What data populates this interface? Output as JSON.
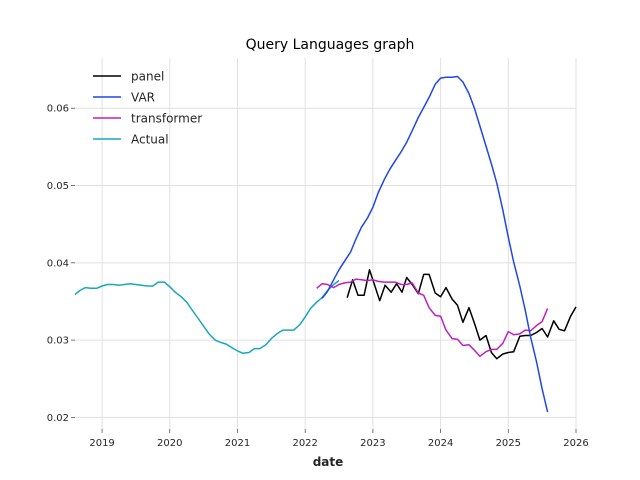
{
  "chart_data": {
    "type": "line",
    "title": "Query Languages graph",
    "xlabel": "date",
    "ylabel": "",
    "xlim": [
      2018.6,
      2026.0
    ],
    "ylim": [
      0.0185,
      0.0665
    ],
    "x_ticks": [
      2019,
      2020,
      2021,
      2022,
      2023,
      2024,
      2025,
      2026
    ],
    "x_tick_labels": [
      "2019",
      "2020",
      "2021",
      "2022",
      "2023",
      "2024",
      "2025",
      "2026"
    ],
    "y_ticks": [
      0.02,
      0.03,
      0.04,
      0.05,
      0.06
    ],
    "y_tick_labels": [
      "0.02",
      "0.03",
      "0.04",
      "0.05",
      "0.06"
    ],
    "grid": true,
    "legend_position": "top-left",
    "series": [
      {
        "name": "panel",
        "color": "#000000",
        "points": [
          [
            2022.62,
            0.0355
          ],
          [
            2022.7,
            0.0378
          ],
          [
            2022.78,
            0.0358
          ],
          [
            2022.87,
            0.0358
          ],
          [
            2022.95,
            0.0391
          ],
          [
            2023.03,
            0.037
          ],
          [
            2023.1,
            0.0351
          ],
          [
            2023.18,
            0.0371
          ],
          [
            2023.27,
            0.0362
          ],
          [
            2023.35,
            0.0373
          ],
          [
            2023.43,
            0.0362
          ],
          [
            2023.5,
            0.0381
          ],
          [
            2023.58,
            0.0372
          ],
          [
            2023.67,
            0.036
          ],
          [
            2023.75,
            0.0385
          ],
          [
            2023.83,
            0.0385
          ],
          [
            2023.92,
            0.0361
          ],
          [
            2024.0,
            0.0356
          ],
          [
            2024.08,
            0.0368
          ],
          [
            2024.17,
            0.0353
          ],
          [
            2024.25,
            0.0345
          ],
          [
            2024.33,
            0.0323
          ],
          [
            2024.42,
            0.0342
          ],
          [
            2024.5,
            0.0322
          ],
          [
            2024.58,
            0.03
          ],
          [
            2024.67,
            0.0306
          ],
          [
            2024.75,
            0.0284
          ],
          [
            2024.83,
            0.0276
          ],
          [
            2024.92,
            0.0282
          ],
          [
            2025.0,
            0.0284
          ],
          [
            2025.08,
            0.0285
          ],
          [
            2025.17,
            0.0305
          ],
          [
            2025.25,
            0.0306
          ],
          [
            2025.33,
            0.0306
          ],
          [
            2025.42,
            0.031
          ],
          [
            2025.5,
            0.0315
          ],
          [
            2025.58,
            0.0304
          ],
          [
            2025.67,
            0.0325
          ],
          [
            2025.75,
            0.0314
          ],
          [
            2025.83,
            0.0312
          ],
          [
            2025.92,
            0.0331
          ],
          [
            2026.0,
            0.0343
          ]
        ]
      },
      {
        "name": "VAR",
        "color": "#1f47e6",
        "points": [
          [
            2022.25,
            0.0354
          ],
          [
            2022.33,
            0.0363
          ],
          [
            2022.42,
            0.0378
          ],
          [
            2022.5,
            0.0391
          ],
          [
            2022.58,
            0.0402
          ],
          [
            2022.67,
            0.0414
          ],
          [
            2022.75,
            0.0431
          ],
          [
            2022.83,
            0.0446
          ],
          [
            2022.92,
            0.0458
          ],
          [
            2023.0,
            0.0472
          ],
          [
            2023.08,
            0.0491
          ],
          [
            2023.17,
            0.0508
          ],
          [
            2023.25,
            0.0521
          ],
          [
            2023.33,
            0.0532
          ],
          [
            2023.42,
            0.0544
          ],
          [
            2023.5,
            0.0556
          ],
          [
            2023.58,
            0.0571
          ],
          [
            2023.67,
            0.0588
          ],
          [
            2023.75,
            0.0601
          ],
          [
            2023.83,
            0.0614
          ],
          [
            2023.92,
            0.0631
          ],
          [
            2024.0,
            0.0639
          ],
          [
            2024.08,
            0.064
          ],
          [
            2024.17,
            0.064
          ],
          [
            2024.25,
            0.0641
          ],
          [
            2024.33,
            0.0634
          ],
          [
            2024.42,
            0.0619
          ],
          [
            2024.5,
            0.06
          ],
          [
            2024.58,
            0.0577
          ],
          [
            2024.67,
            0.0551
          ],
          [
            2024.75,
            0.0528
          ],
          [
            2024.83,
            0.0503
          ],
          [
            2024.92,
            0.0468
          ],
          [
            2025.0,
            0.0433
          ],
          [
            2025.08,
            0.0401
          ],
          [
            2025.17,
            0.037
          ],
          [
            2025.25,
            0.0339
          ],
          [
            2025.33,
            0.0304
          ],
          [
            2025.42,
            0.0271
          ],
          [
            2025.5,
            0.0237
          ],
          [
            2025.58,
            0.0207
          ]
        ]
      },
      {
        "name": "transformer",
        "color": "#c21fc2",
        "points": [
          [
            2022.17,
            0.0367
          ],
          [
            2022.25,
            0.0373
          ],
          [
            2022.33,
            0.0372
          ],
          [
            2022.42,
            0.0368
          ],
          [
            2022.5,
            0.0372
          ],
          [
            2022.58,
            0.0374
          ],
          [
            2022.67,
            0.0375
          ],
          [
            2022.75,
            0.0379
          ],
          [
            2022.83,
            0.0378
          ],
          [
            2022.92,
            0.0377
          ],
          [
            2023.0,
            0.0378
          ],
          [
            2023.08,
            0.0376
          ],
          [
            2023.17,
            0.0375
          ],
          [
            2023.25,
            0.0375
          ],
          [
            2023.33,
            0.0375
          ],
          [
            2023.42,
            0.0372
          ],
          [
            2023.5,
            0.0372
          ],
          [
            2023.58,
            0.0374
          ],
          [
            2023.67,
            0.0361
          ],
          [
            2023.75,
            0.0358
          ],
          [
            2023.83,
            0.0342
          ],
          [
            2023.92,
            0.0332
          ],
          [
            2024.0,
            0.0331
          ],
          [
            2024.08,
            0.0313
          ],
          [
            2024.17,
            0.0302
          ],
          [
            2024.25,
            0.0301
          ],
          [
            2024.33,
            0.0293
          ],
          [
            2024.42,
            0.0294
          ],
          [
            2024.5,
            0.0287
          ],
          [
            2024.58,
            0.0279
          ],
          [
            2024.67,
            0.0285
          ],
          [
            2024.75,
            0.0288
          ],
          [
            2024.83,
            0.0288
          ],
          [
            2024.92,
            0.0296
          ],
          [
            2025.0,
            0.0311
          ],
          [
            2025.08,
            0.0307
          ],
          [
            2025.17,
            0.0308
          ],
          [
            2025.25,
            0.0313
          ],
          [
            2025.33,
            0.0312
          ],
          [
            2025.42,
            0.0319
          ],
          [
            2025.5,
            0.0324
          ],
          [
            2025.58,
            0.0341
          ]
        ]
      },
      {
        "name": "Actual",
        "color": "#17a8be",
        "points": [
          [
            2018.6,
            0.0359
          ],
          [
            2018.67,
            0.0364
          ],
          [
            2018.75,
            0.0368
          ],
          [
            2018.83,
            0.0367
          ],
          [
            2018.92,
            0.0367
          ],
          [
            2019.0,
            0.037
          ],
          [
            2019.08,
            0.0372
          ],
          [
            2019.17,
            0.0372
          ],
          [
            2019.25,
            0.0371
          ],
          [
            2019.33,
            0.0372
          ],
          [
            2019.42,
            0.0373
          ],
          [
            2019.5,
            0.0372
          ],
          [
            2019.58,
            0.0371
          ],
          [
            2019.67,
            0.037
          ],
          [
            2019.75,
            0.037
          ],
          [
            2019.83,
            0.0375
          ],
          [
            2019.92,
            0.0375
          ],
          [
            2020.0,
            0.0369
          ],
          [
            2020.08,
            0.0362
          ],
          [
            2020.17,
            0.0356
          ],
          [
            2020.25,
            0.0349
          ],
          [
            2020.33,
            0.0339
          ],
          [
            2020.42,
            0.0328
          ],
          [
            2020.5,
            0.0318
          ],
          [
            2020.58,
            0.0308
          ],
          [
            2020.67,
            0.03
          ],
          [
            2020.75,
            0.0297
          ],
          [
            2020.83,
            0.0295
          ],
          [
            2020.92,
            0.029
          ],
          [
            2021.0,
            0.0286
          ],
          [
            2021.08,
            0.0283
          ],
          [
            2021.17,
            0.0284
          ],
          [
            2021.25,
            0.0289
          ],
          [
            2021.33,
            0.0289
          ],
          [
            2021.42,
            0.0294
          ],
          [
            2021.5,
            0.0302
          ],
          [
            2021.58,
            0.0308
          ],
          [
            2021.67,
            0.0313
          ],
          [
            2021.75,
            0.0313
          ],
          [
            2021.83,
            0.0313
          ],
          [
            2021.92,
            0.032
          ],
          [
            2022.0,
            0.033
          ],
          [
            2022.08,
            0.0341
          ],
          [
            2022.17,
            0.0349
          ],
          [
            2022.25,
            0.0355
          ],
          [
            2022.33,
            0.0364
          ],
          [
            2022.42,
            0.0372
          ],
          [
            2022.5,
            0.0377
          ]
        ]
      }
    ]
  }
}
